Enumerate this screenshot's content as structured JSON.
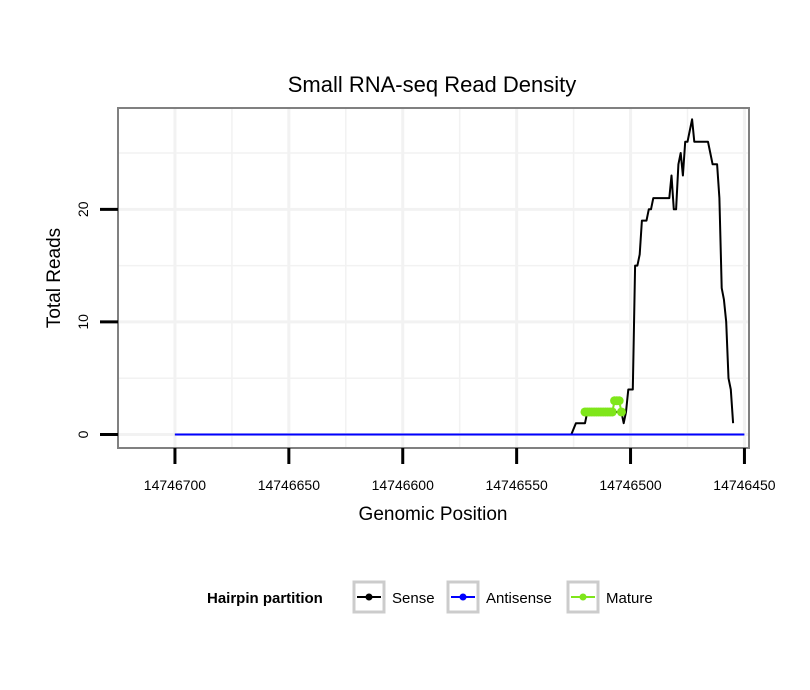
{
  "chart_data": {
    "type": "line",
    "title": "Small RNA-seq Read Density",
    "xlabel": "Genomic Position",
    "ylabel": "Total Reads",
    "x_reversed": true,
    "xlim": [
      14746725,
      14746448
    ],
    "ylim": [
      -1.2,
      29.0
    ],
    "x_ticks": [
      14746700,
      14746650,
      14746600,
      14746550,
      14746500,
      14746450
    ],
    "x_tick_labels": [
      "14746700",
      "14746650",
      "14746600",
      "14746550",
      "14746500",
      "14746450"
    ],
    "y_ticks": [
      0,
      10,
      20
    ],
    "y_tick_labels": [
      "0",
      "10",
      "20"
    ],
    "grid": true,
    "legend": {
      "title": "Hairpin partition",
      "position": "bottom",
      "entries": [
        "Sense",
        "Antisense",
        "Mature"
      ]
    },
    "series": [
      {
        "name": "Sense",
        "color": "#000000",
        "points": [
          [
            14746700,
            0
          ],
          [
            14746526,
            0
          ],
          [
            14746524,
            1
          ],
          [
            14746520,
            1
          ],
          [
            14746519,
            2
          ],
          [
            14746504,
            2
          ],
          [
            14746503,
            1
          ],
          [
            14746502,
            2
          ],
          [
            14746501,
            4
          ],
          [
            14746499,
            4
          ],
          [
            14746498,
            15
          ],
          [
            14746497,
            15
          ],
          [
            14746496,
            16
          ],
          [
            14746495,
            19
          ],
          [
            14746493,
            19
          ],
          [
            14746492,
            20
          ],
          [
            14746491,
            20
          ],
          [
            14746490,
            21
          ],
          [
            14746483,
            21
          ],
          [
            14746482,
            23
          ],
          [
            14746481,
            20
          ],
          [
            14746480,
            20
          ],
          [
            14746479,
            24
          ],
          [
            14746478,
            25
          ],
          [
            14746477,
            23
          ],
          [
            14746476,
            26
          ],
          [
            14746475,
            26
          ],
          [
            14746474,
            27
          ],
          [
            14746473,
            28
          ],
          [
            14746472,
            26
          ],
          [
            14746466,
            26
          ],
          [
            14746465,
            25
          ],
          [
            14746464,
            24
          ],
          [
            14746462,
            24
          ],
          [
            14746461,
            21
          ],
          [
            14746460,
            13
          ],
          [
            14746459,
            12
          ],
          [
            14746458,
            10
          ],
          [
            14746457,
            5
          ],
          [
            14746456,
            4
          ],
          [
            14746455,
            1
          ]
        ]
      },
      {
        "name": "Antisense",
        "color": "#0000ff",
        "points": [
          [
            14746700,
            0
          ],
          [
            14746450,
            0
          ]
        ]
      },
      {
        "name": "Mature",
        "color": "#7fe61a",
        "points": [
          [
            14746520,
            2
          ],
          [
            14746519,
            2
          ],
          [
            14746518,
            2
          ],
          [
            14746517,
            2
          ],
          [
            14746516,
            2
          ],
          [
            14746515,
            2
          ],
          [
            14746514,
            2
          ],
          [
            14746513,
            2
          ],
          [
            14746512,
            2
          ],
          [
            14746511,
            2
          ],
          [
            14746510,
            2
          ],
          [
            14746509,
            2
          ],
          [
            14746508,
            2
          ],
          [
            14746507,
            3
          ],
          [
            14746506,
            3
          ],
          [
            14746505,
            3
          ],
          [
            14746504,
            2
          ]
        ]
      }
    ]
  },
  "colors": {
    "panel_border": "#808080",
    "grid": "#f2f2f2",
    "legend_key_border": "#cccccc"
  }
}
